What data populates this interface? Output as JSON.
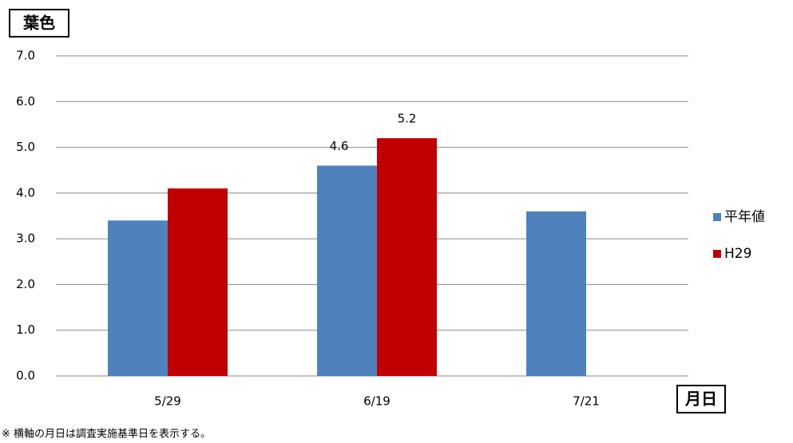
{
  "chart_data": {
    "type": "bar",
    "y_label": "葉色",
    "x_label": "月日",
    "footnote": "※ 横軸の月日は調査実施基準日を表示する。",
    "categories": [
      "5/29",
      "6/19",
      "7/21"
    ],
    "series": [
      {
        "name": "平年値",
        "color": "#4f81bd",
        "values": [
          3.4,
          4.6,
          3.6
        ],
        "value_labels": [
          null,
          "4.6",
          null
        ]
      },
      {
        "name": "H29",
        "color": "#c00000",
        "values": [
          4.1,
          5.2,
          null
        ],
        "value_labels": [
          null,
          "5.2",
          null
        ]
      }
    ],
    "ylim": [
      0,
      7
    ],
    "yticks": [
      {
        "value": 0,
        "label": "0.0"
      },
      {
        "value": 1,
        "label": "1.0"
      },
      {
        "value": 2,
        "label": "2.0"
      },
      {
        "value": 3,
        "label": "3.0"
      },
      {
        "value": 4,
        "label": "4.0"
      },
      {
        "value": 5,
        "label": "5.0"
      },
      {
        "value": 6,
        "label": "6.0"
      },
      {
        "value": 7,
        "label": "7.0"
      }
    ],
    "grid": true,
    "legend": "right"
  }
}
